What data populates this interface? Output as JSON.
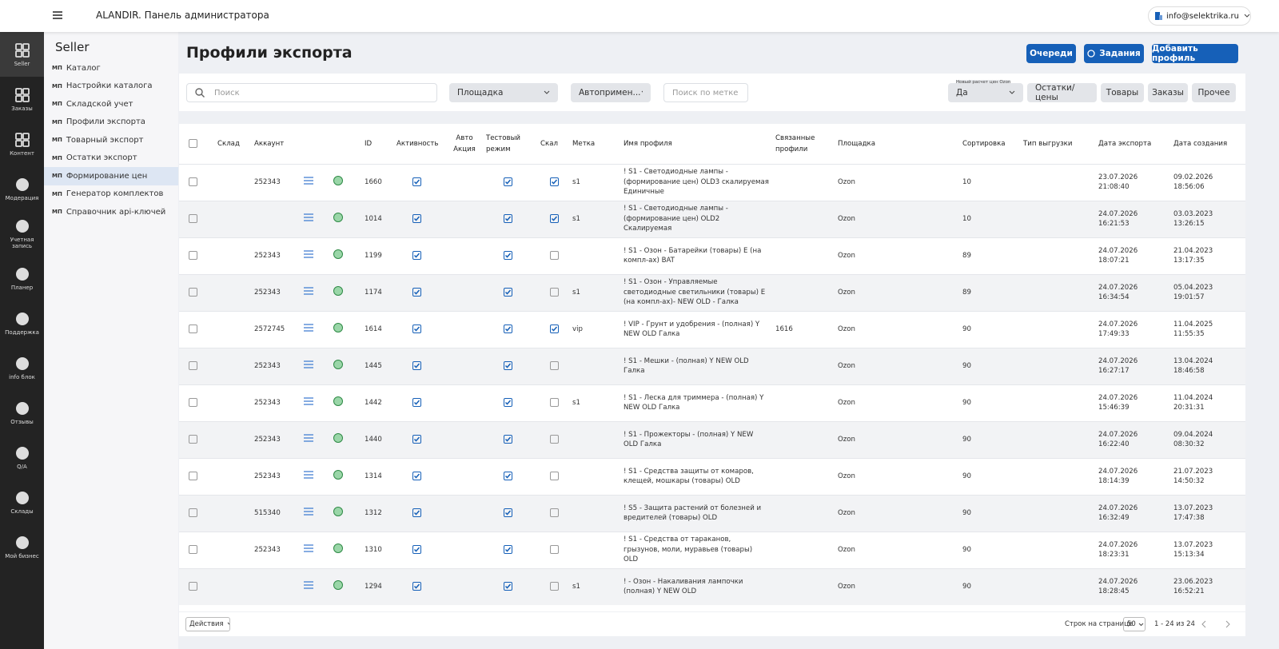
{
  "header": {
    "title": "ALANDIR. Панель администратора",
    "user": "info@selektrika.ru"
  },
  "sidebar": [
    "Seller",
    "Заказы",
    "Контент",
    "Модерация",
    "Учетная запись",
    "Планер",
    "Поддержка",
    "info блок",
    "Отзывы",
    "Q/A",
    "Склады",
    "Мой бизнес"
  ],
  "menu": {
    "title": "Seller",
    "prefix": "МП",
    "items": [
      "Каталог",
      "Настройки каталога",
      "Складской учет",
      "Профили экспорта",
      "Товарный экспорт",
      "Остатки экспорт",
      "Формирование цен",
      "Генератор комплектов",
      "Справочник api-ключей"
    ],
    "active": 6
  },
  "page": {
    "title": "Профили экспорта",
    "buttons": [
      "Очереди",
      "Задания",
      "Добавить профиль"
    ]
  },
  "filters": {
    "search": "Поиск",
    "platform": "Площадка",
    "auto": "Автопримен...",
    "tag": "Поиск по метке",
    "ozon_label": "Новый расчет цен Ozon",
    "ozon_value": "Да",
    "tabs": [
      "Остатки/цены",
      "Товары",
      "Заказы",
      "Прочее"
    ]
  },
  "table": {
    "columns": [
      "Склад",
      "Аккаунт",
      "ID",
      "Активность",
      "Авто Акция",
      "Тестовый режим",
      "Скал",
      "Метка",
      "Имя профиля",
      "Связанные профили",
      "Площадка",
      "Сортировка",
      "Тип выгрузки",
      "Дата экспорта",
      "Дата создания"
    ],
    "rows": [
      {
        "account": "252343",
        "id": "1660",
        "active": true,
        "test": true,
        "scale": true,
        "tag": "s1",
        "name": "! S1 - Светодиодные лампы - (формирование цен) OLD3 скалируемая Единичные",
        "linked": null,
        "platform": "Ozon",
        "sort": "10",
        "exported": "23.07.2026 21:08:40",
        "created": "09.02.2026 18:56:06"
      },
      {
        "account": null,
        "id": "1014",
        "active": true,
        "test": true,
        "scale": true,
        "tag": "s1",
        "name": "! S1 - Светодиодные лампы - (формирование цен) OLD2 Скалируемая",
        "linked": null,
        "platform": "Ozon",
        "sort": "10",
        "exported": "24.07.2026 16:21:53",
        "created": "03.03.2023 13:26:15"
      },
      {
        "account": "252343",
        "id": "1199",
        "active": true,
        "test": true,
        "scale": false,
        "tag": null,
        "name": "! S1 - Озон - Батарейки (товары) E (на компл-ах) BAT",
        "linked": null,
        "platform": "Ozon",
        "sort": "89",
        "exported": "24.07.2026 18:07:21",
        "created": "21.04.2023 13:17:35"
      },
      {
        "account": "252343",
        "id": "1174",
        "active": true,
        "test": true,
        "scale": false,
        "tag": "s1",
        "name": "! S1 - Озон - Управляемые светодиодные светильники (товары) E (на компл-ах)- NEW OLD - Галка",
        "linked": null,
        "platform": "Ozon",
        "sort": "89",
        "exported": "24.07.2026 16:34:54",
        "created": "05.04.2023 19:01:57"
      },
      {
        "account": "2572745",
        "id": "1614",
        "active": true,
        "test": true,
        "scale": true,
        "tag": "vip",
        "name": "! VIP - Грунт и удобрения - (полная) Y NEW OLD Галка",
        "linked": "1616",
        "platform": "Ozon",
        "sort": "90",
        "exported": "24.07.2026 17:49:33",
        "created": "11.04.2025 11:55:35"
      },
      {
        "account": "252343",
        "id": "1445",
        "active": true,
        "test": true,
        "scale": false,
        "tag": null,
        "name": "! S1 - Мешки - (полная) Y NEW OLD Галка",
        "linked": null,
        "platform": "Ozon",
        "sort": "90",
        "exported": "24.07.2026 16:27:17",
        "created": "13.04.2024 18:46:58"
      },
      {
        "account": "252343",
        "id": "1442",
        "active": true,
        "test": true,
        "scale": false,
        "tag": "s1",
        "name": "! S1 - Леска для триммера - (полная) Y NEW OLD Галка",
        "linked": null,
        "platform": "Ozon",
        "sort": "90",
        "exported": "24.07.2026 15:46:39",
        "created": "11.04.2024 20:31:31"
      },
      {
        "account": "252343",
        "id": "1440",
        "active": true,
        "test": true,
        "scale": false,
        "tag": null,
        "name": "! S1 - Прожекторы - (полная) Y NEW OLD Галка",
        "linked": null,
        "platform": "Ozon",
        "sort": "90",
        "exported": "24.07.2026 16:22:40",
        "created": "09.04.2024 08:30:32"
      },
      {
        "account": "252343",
        "id": "1314",
        "active": true,
        "test": true,
        "scale": false,
        "tag": null,
        "name": "! S1 - Средства защиты от комаров, клещей, мошкары (товары) OLD",
        "linked": null,
        "platform": "Ozon",
        "sort": "90",
        "exported": "24.07.2026 18:14:39",
        "created": "21.07.2023 14:50:32"
      },
      {
        "account": "515340",
        "id": "1312",
        "active": true,
        "test": true,
        "scale": false,
        "tag": null,
        "name": "! S5 - Защита растений от болезней и вредителей (товары) OLD",
        "linked": null,
        "platform": "Ozon",
        "sort": "90",
        "exported": "24.07.2026 16:32:49",
        "created": "13.07.2023 17:47:38"
      },
      {
        "account": "252343",
        "id": "1310",
        "active": true,
        "test": true,
        "scale": false,
        "tag": null,
        "name": "! S1 - Средства от тараканов, грызунов, моли, муравьев (товары) OLD",
        "linked": null,
        "platform": "Ozon",
        "sort": "90",
        "exported": "24.07.2026 18:23:31",
        "created": "13.07.2023 15:13:34"
      },
      {
        "account": null,
        "id": "1294",
        "active": true,
        "test": true,
        "scale": false,
        "tag": "s1",
        "name": "! - Озон - Накаливания лампочки (полная) Y NEW OLD",
        "linked": null,
        "platform": "Ozon",
        "sort": "90",
        "exported": "24.07.2026 18:28:45",
        "created": "23.06.2023 16:52:21"
      }
    ]
  },
  "footer": {
    "actions": "Действия",
    "rows_label": "Строк на странице",
    "per_page": "50",
    "range": "1 - 24 из 24"
  }
}
